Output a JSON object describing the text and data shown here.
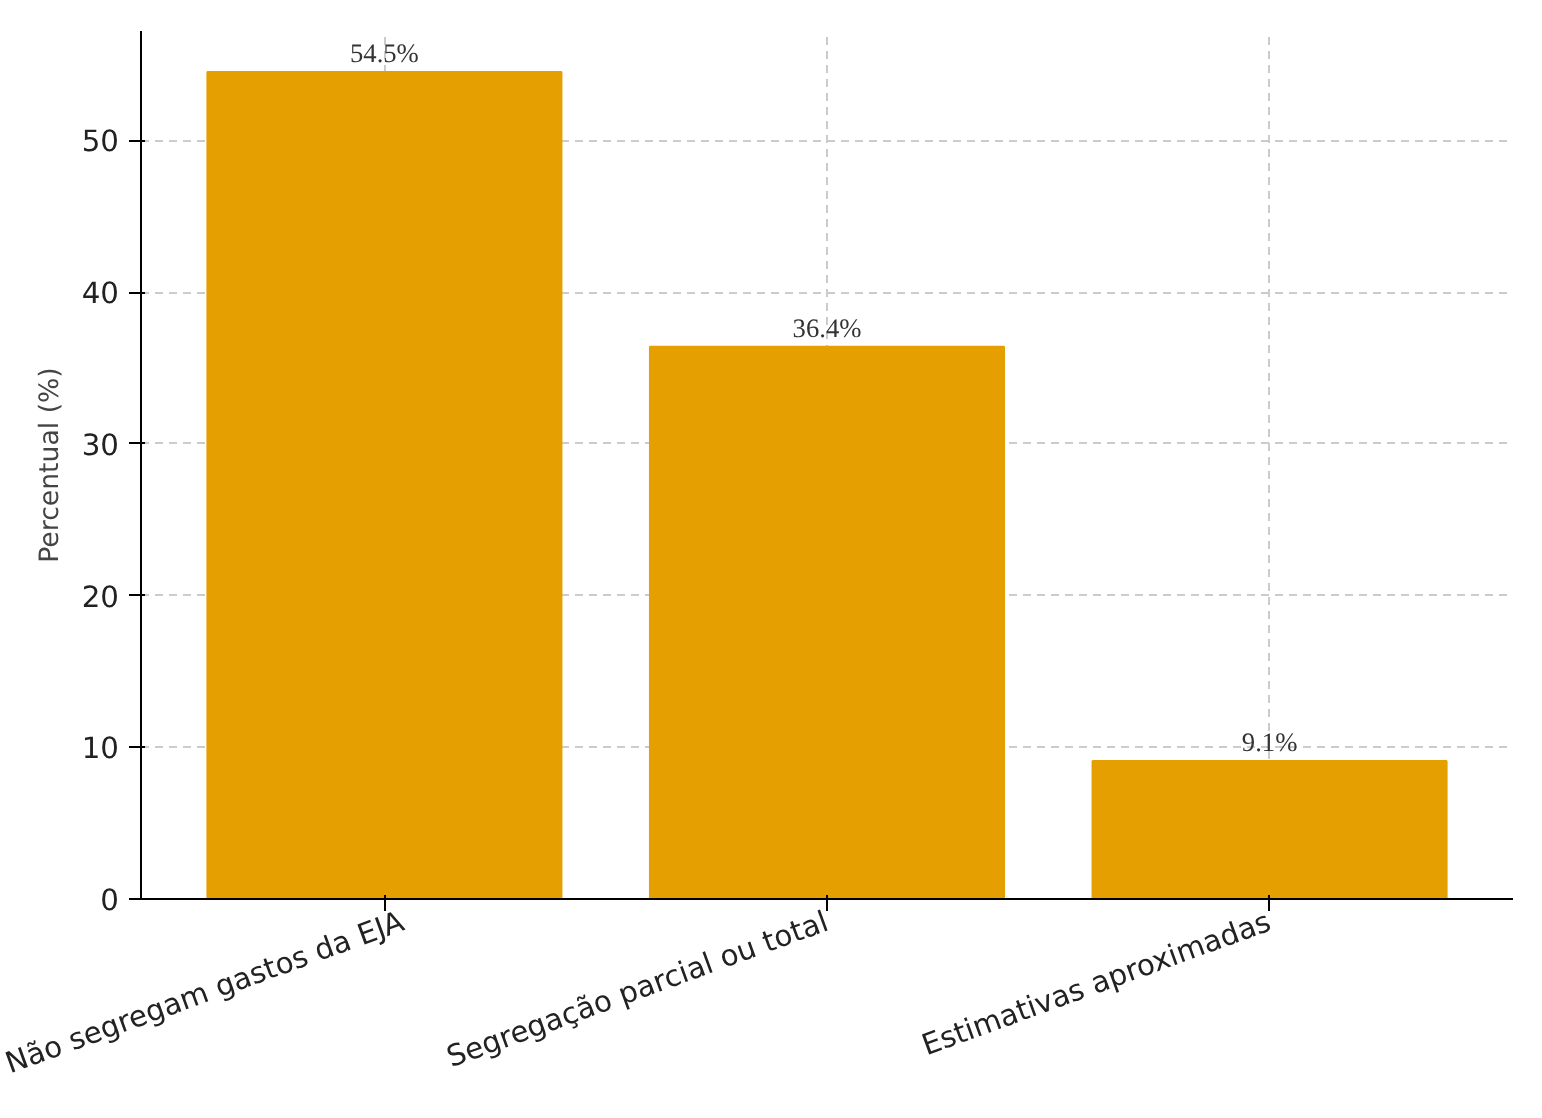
{
  "chart_data": {
    "type": "bar",
    "ylabel": "Percentual (%)",
    "categories": [
      "Não segregam gastos da EJA",
      "Segregação parcial ou total",
      "Estimativas aproximadas"
    ],
    "values": [
      54.5,
      36.4,
      9.1
    ],
    "color": "#e69f00",
    "value_labels": [
      "54.5%",
      "36.4%",
      "9.1%"
    ],
    "ylim": [
      0,
      57.2
    ],
    "yticks": [
      0,
      10,
      20,
      30,
      40,
      50
    ],
    "grid": true
  }
}
